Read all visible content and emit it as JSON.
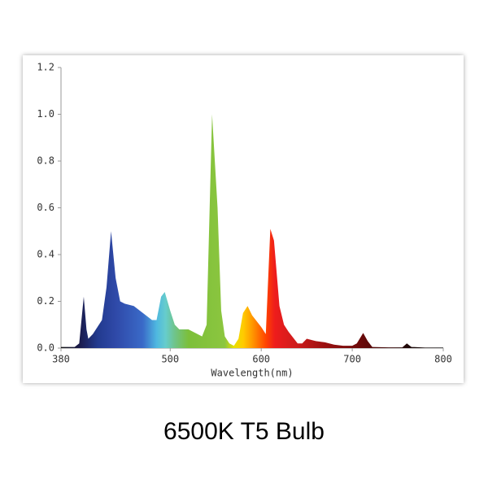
{
  "chart_data": {
    "type": "area",
    "title": "6500K T5 Bulb",
    "x_label": "Wavelength(nm)",
    "x": [
      380,
      395,
      400,
      405,
      408,
      410,
      415,
      425,
      430,
      435,
      440,
      445,
      450,
      460,
      470,
      480,
      485,
      490,
      494,
      500,
      505,
      510,
      520,
      530,
      535,
      540,
      546,
      552,
      556,
      560,
      565,
      570,
      575,
      580,
      585,
      590,
      600,
      605,
      610,
      614,
      620,
      625,
      630,
      640,
      645,
      650,
      660,
      670,
      680,
      690,
      700,
      705,
      712,
      717,
      722,
      740,
      755,
      760,
      765,
      780,
      800
    ],
    "values": [
      0.005,
      0.005,
      0.02,
      0.22,
      0.08,
      0.04,
      0.06,
      0.12,
      0.26,
      0.5,
      0.3,
      0.2,
      0.19,
      0.18,
      0.15,
      0.12,
      0.12,
      0.22,
      0.24,
      0.16,
      0.1,
      0.08,
      0.08,
      0.06,
      0.05,
      0.1,
      1.0,
      0.6,
      0.16,
      0.05,
      0.02,
      0.01,
      0.04,
      0.15,
      0.18,
      0.14,
      0.09,
      0.06,
      0.51,
      0.46,
      0.18,
      0.1,
      0.07,
      0.02,
      0.02,
      0.04,
      0.03,
      0.025,
      0.015,
      0.01,
      0.01,
      0.02,
      0.065,
      0.03,
      0.005,
      0.003,
      0.003,
      0.02,
      0.005,
      0.002,
      0.002
    ],
    "xlim": [
      380,
      800
    ],
    "xticks": [
      380,
      500,
      600,
      700,
      800
    ],
    "ylim": [
      0,
      1.2
    ],
    "yticks": [
      {
        "value": 0,
        "label": "0.0"
      },
      {
        "value": 0.2,
        "label": "0.2"
      },
      {
        "value": 0.4,
        "label": "0.4"
      },
      {
        "value": 0.6,
        "label": "0.6"
      },
      {
        "value": 0.8,
        "label": "0.8"
      },
      {
        "value": 1.0,
        "label": "1.0"
      },
      {
        "value": 1.2,
        "label": "1.2"
      }
    ],
    "fill": "spectrum"
  }
}
